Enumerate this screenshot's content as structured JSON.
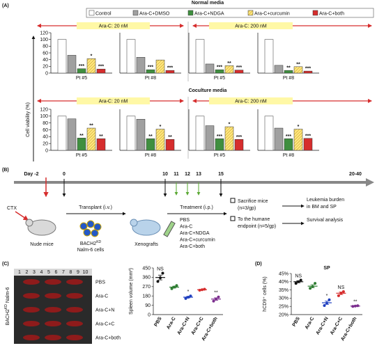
{
  "panel_labels": [
    "(A)",
    "(B)",
    "(C)",
    "(D)"
  ],
  "chart_data": [
    {
      "type": "bar",
      "title": "Normal media",
      "categories": [
        "Pt #5",
        "Pt #8",
        "Pt #5",
        "Pt #8"
      ],
      "groups": [
        "Ara-C: 20 nM",
        "Ara-C: 200 nM"
      ],
      "ylabel": "Cell viability (%)",
      "ylim": [
        0,
        120
      ],
      "yticks": [
        0,
        20,
        40,
        60,
        80,
        100,
        120
      ],
      "series": [
        {
          "name": "Control",
          "color": "#ffffff",
          "values": [
            100,
            100,
            100,
            100
          ],
          "significance": [
            null,
            null,
            null,
            null
          ]
        },
        {
          "name": "Ara-C+DMSO",
          "color": "#a0a0a0",
          "values": [
            53,
            47,
            27,
            23
          ],
          "significance": [
            null,
            null,
            null,
            null
          ]
        },
        {
          "name": "Ara-C+NDGA",
          "color": "#3f8f3f",
          "values": [
            13,
            10,
            10,
            8
          ],
          "significance": [
            "***",
            "***",
            "***",
            "**"
          ]
        },
        {
          "name": "Ara-C+curcumin",
          "color": "#ffe680",
          "hatch": true,
          "values": [
            43,
            39,
            22,
            19
          ],
          "significance": [
            "*",
            null,
            "**",
            "**"
          ]
        },
        {
          "name": "Ara-C+both",
          "color": "#d62d2d",
          "values": [
            12,
            8,
            9,
            6
          ],
          "significance": [
            "***",
            "***",
            "***",
            "***"
          ]
        }
      ]
    },
    {
      "type": "bar",
      "title": "Coculture media",
      "categories": [
        "Pt #5",
        "Pt #8",
        "Pt #5",
        "Pt #8"
      ],
      "groups": [
        "Ara-C: 20 nM",
        "Ara-C: 200 nM"
      ],
      "ylim": [
        0,
        120
      ],
      "yticks": [
        0,
        20,
        40,
        60,
        80,
        100,
        120
      ],
      "series": [
        {
          "color": "#ffffff",
          "values": [
            100,
            100,
            100,
            100
          ],
          "significance": [
            null,
            null,
            null,
            null
          ]
        },
        {
          "color": "#a0a0a0",
          "values": [
            92,
            91,
            72,
            65
          ],
          "significance": [
            null,
            null,
            null,
            null
          ]
        },
        {
          "color": "#3f8f3f",
          "values": [
            36,
            34,
            34,
            34
          ],
          "significance": [
            "**",
            "**",
            "***",
            "***"
          ]
        },
        {
          "color": "#ffe680",
          "hatch": true,
          "values": [
            65,
            62,
            69,
            62
          ],
          "significance": [
            "**",
            "*",
            "*",
            "*"
          ]
        },
        {
          "color": "#d62d2d",
          "values": [
            34,
            32,
            32,
            35
          ],
          "significance": [
            "**",
            "**",
            "***",
            "***"
          ]
        }
      ]
    },
    {
      "type": "dot",
      "categories": [
        "PBS",
        "Ara-C",
        "Ara-C+N",
        "Ara-C+C",
        "Ara-C+both"
      ],
      "ylabel": "Spleen volume (mm³)",
      "ylim": [
        0,
        450
      ],
      "yticks": [
        0,
        90,
        180,
        270,
        360,
        450
      ],
      "colors": [
        "#111111",
        "#2e7d32",
        "#1f3fbf",
        "#d62d2d",
        "#7b2d8e"
      ],
      "points": [
        [
          320,
          355,
          400
        ],
        [
          250,
          265,
          280
        ],
        [
          155,
          168,
          180
        ],
        [
          235,
          240,
          245
        ],
        [
          130,
          150,
          170
        ]
      ],
      "means": [
        358,
        265,
        168,
        240,
        150
      ],
      "errors": [
        23,
        9,
        7,
        3,
        12
      ],
      "significance": [
        "NS",
        null,
        "*",
        null,
        "**"
      ]
    },
    {
      "type": "dot",
      "title": "SP",
      "categories": [
        "PBS",
        "Ara-C",
        "Ara-C+N",
        "Ara-C+C",
        "Ara-C+both"
      ],
      "ylabel": "hCD9⁺ cells (%)",
      "ylim": [
        20,
        45
      ],
      "yticks": [
        {
          "value": 20,
          "label": "20%"
        },
        {
          "value": 25,
          "label": "25%"
        },
        {
          "value": 30,
          "label": "30%"
        },
        {
          "value": 35,
          "label": "35%"
        },
        {
          "value": 40,
          "label": "40%"
        },
        {
          "value": 45,
          "label": "45%"
        }
      ],
      "colors": [
        "#111111",
        "#2e7d32",
        "#1f3fbf",
        "#d62d2d",
        "#7b2d8e"
      ],
      "points": [
        [
          39,
          40,
          41
        ],
        [
          36,
          37,
          39
        ],
        [
          25.5,
          27,
          29
        ],
        [
          31.5,
          33,
          34
        ],
        [
          25,
          25.2,
          25.4
        ]
      ],
      "means": [
        40,
        37.3,
        27.2,
        33,
        25.2
      ],
      "errors": [
        0.6,
        0.9,
        1.0,
        0.8,
        0.2
      ],
      "significance": [
        "NS",
        null,
        "*",
        "NS",
        "**"
      ]
    }
  ],
  "timeline": {
    "days": [
      "Day -2",
      "0",
      "10",
      "11",
      "12",
      "13",
      "15",
      "20-40"
    ],
    "ctx": "CTX",
    "nude": "Nude mice",
    "transplant": "Transplant (i.v.)",
    "cells": {
      "main": "BACH2",
      "sup": "KD",
      "line2": "Nalm-6 cells"
    },
    "xenografts": "Xenografts",
    "treatment": "Treatment (i.p.)",
    "groups": [
      "PBS",
      "Ara-C",
      "Ara-C+NDGA",
      "Ara-C+curcumin",
      "Ara-C+both"
    ],
    "outcomes": [
      {
        "condition": [
          "Sacrifice mice",
          "(n=3/gp)"
        ],
        "result": [
          "Leukemia burden",
          "in BM and SP"
        ]
      },
      {
        "condition": [
          "To the humane",
          "endpoint (n=5/gp)"
        ],
        "result": [
          "Survival analysis"
        ]
      }
    ]
  },
  "photo": {
    "label": {
      "main": "BACH2",
      "sup": "KD",
      "rest": " Nalm-6"
    },
    "ruler": [
      "1",
      "2",
      "3",
      "4",
      "5",
      "6",
      "7",
      "8",
      "9",
      "10"
    ],
    "rows": [
      "PBS",
      "Ara-C",
      "Ara-C+N",
      "Ara-C+C",
      "Ara-C+both"
    ]
  }
}
